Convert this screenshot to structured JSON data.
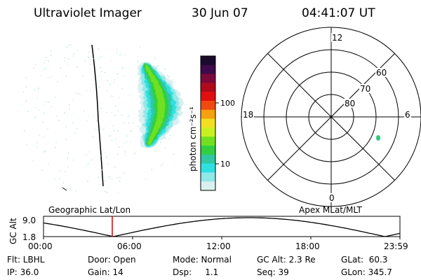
{
  "header": {
    "instrument": "Ultraviolet Imager",
    "date": "30 Jun 07",
    "time": "04:41:07 UT"
  },
  "colorbar": {
    "label": "photon cm⁻²s⁻¹",
    "ticks": [
      "100",
      "10"
    ],
    "colors": [
      "#1a0a2e",
      "#3d0a4a",
      "#7a0a3a",
      "#b00a1a",
      "#e01010",
      "#f04a10",
      "#f5a010",
      "#f0e020",
      "#c8f020",
      "#70e020",
      "#30d040",
      "#30c8a0",
      "#30e0e0",
      "#90e8e8",
      "#d8f0f0"
    ]
  },
  "polar": {
    "clock_labels": {
      "top": "12",
      "left": "18",
      "right": "6",
      "bottom": "0"
    },
    "lat_labels": [
      "60",
      "70",
      "80"
    ]
  },
  "timeline": {
    "left_label": "Geographic Lat/Lon",
    "right_label": "Apex MLat/MLT",
    "axis_title": "GC Alt",
    "y_max": "9.0",
    "y_min": "1.8",
    "x_ticks": [
      "00:00",
      "06:00",
      "12:00",
      "18:00",
      "23:59"
    ],
    "marker_color": "#d00000"
  },
  "info": {
    "row1": {
      "flt": "Flt: LBHL",
      "door": "Door: Open",
      "mode": "Mode: Normal",
      "gcalt": "GC Alt: 2.3 Re",
      "glat": "GLat:  60.3"
    },
    "row2": {
      "ip": "IP: 36.0",
      "gain": "Gain: 14",
      "dsp": "Dsp:     1.1",
      "seq": "Seq: 39",
      "glon": "GLon: 345.7"
    }
  }
}
